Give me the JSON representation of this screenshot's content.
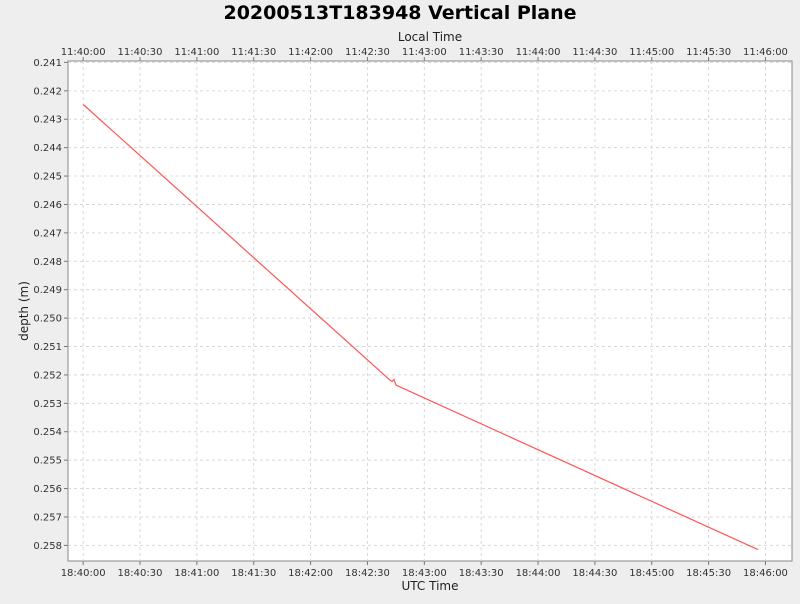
{
  "chart_data": {
    "type": "line",
    "title": "20200513T183948 Vertical Plane",
    "top_axis_label": "Local Time",
    "xlabel": "UTC Time",
    "ylabel": "depth (m)",
    "y_inverted": true,
    "ylim": [
      0.24095,
      0.25855
    ],
    "xlim": [
      "18:39:52",
      "18:46:14"
    ],
    "top_ticks": [
      "11:40:00",
      "11:40:30",
      "11:41:00",
      "11:41:30",
      "11:42:00",
      "11:42:30",
      "11:43:00",
      "11:43:30",
      "11:44:00",
      "11:44:30",
      "11:45:00",
      "11:45:30",
      "11:46:00"
    ],
    "bottom_ticks": [
      "18:40:00",
      "18:40:30",
      "18:41:00",
      "18:41:30",
      "18:42:00",
      "18:42:30",
      "18:43:00",
      "18:43:30",
      "18:44:00",
      "18:44:30",
      "18:45:00",
      "18:45:30",
      "18:46:00"
    ],
    "y_ticks": [
      "0.241",
      "0.242",
      "0.243",
      "0.244",
      "0.245",
      "0.246",
      "0.247",
      "0.248",
      "0.249",
      "0.250",
      "0.251",
      "0.252",
      "0.253",
      "0.254",
      "0.255",
      "0.256",
      "0.257",
      "0.258"
    ],
    "grid": true,
    "line_color": "#ff5555",
    "plot_background": "#ffffff",
    "series": [
      {
        "x": [
          "18:40:00",
          "18:42:42",
          "18:42:43",
          "18:42:44",
          "18:42:45",
          "18:45:56"
        ],
        "y": [
          0.24248,
          0.25219,
          0.25223,
          0.25216,
          0.25236,
          0.25815
        ]
      }
    ]
  }
}
